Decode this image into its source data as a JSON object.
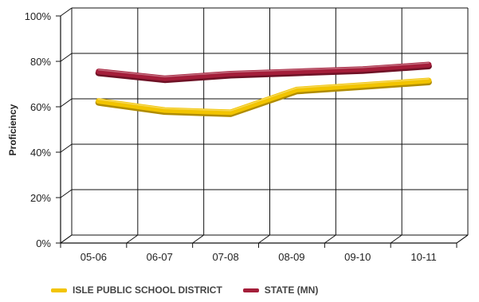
{
  "chart_data": {
    "type": "line",
    "title": "",
    "xlabel": "",
    "ylabel": "Proficiency",
    "categories": [
      "05-06",
      "06-07",
      "07-08",
      "08-09",
      "09-10",
      "10-11"
    ],
    "ylim": [
      0,
      100
    ],
    "yticks": [
      "0%",
      "20%",
      "40%",
      "60%",
      "80%",
      "100%"
    ],
    "grid": true,
    "legend_position": "bottom",
    "series": [
      {
        "name": "ISLE PUBLIC SCHOOL DISTRICT",
        "color": "#f2c400",
        "values": [
          61,
          57,
          56,
          66,
          68,
          70
        ]
      },
      {
        "name": "STATE (MN)",
        "color": "#a41e3a",
        "values": [
          74,
          71,
          73,
          74,
          75,
          77
        ]
      }
    ]
  }
}
